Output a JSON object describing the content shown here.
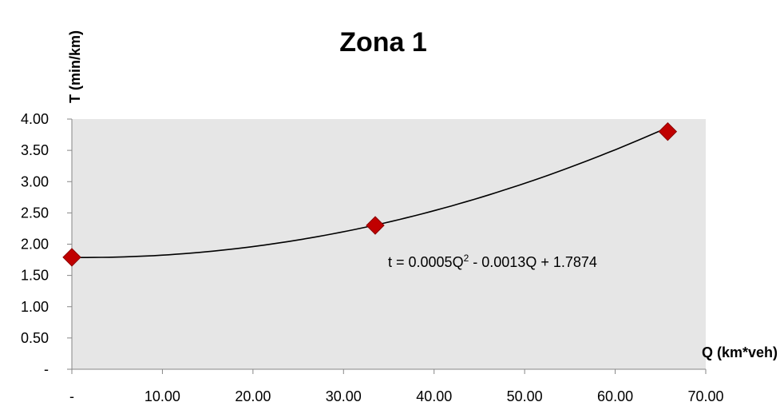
{
  "chart_data": {
    "type": "scatter",
    "title": "Zona 1",
    "xlabel": "Q (km*veh)",
    "ylabel": "T (min/km)",
    "xlim": [
      0,
      70
    ],
    "ylim": [
      0,
      4
    ],
    "x_ticks": [
      "-",
      "10.00",
      "20.00",
      "30.00",
      "40.00",
      "50.00",
      "60.00",
      "70.00"
    ],
    "y_ticks": [
      "-",
      "0.50",
      "1.00",
      "1.50",
      "2.00",
      "2.50",
      "3.00",
      "3.50",
      "4.00"
    ],
    "grid": false,
    "plot_background": "#e6e6e6",
    "marker_color": "#c00000",
    "marker_shape": "diamond",
    "series": [
      {
        "x": [
          0,
          33.5,
          65.8
        ],
        "y": [
          1.79,
          2.3,
          3.8
        ]
      }
    ],
    "trendline": {
      "type": "polynomial",
      "coefficients": {
        "a": 0.0005,
        "b": -0.0013,
        "c": 1.7874
      },
      "label_text": "t = 0.0005Q",
      "label_sup": "2",
      "label_rest": " - 0.0013Q + 1.7874"
    }
  }
}
